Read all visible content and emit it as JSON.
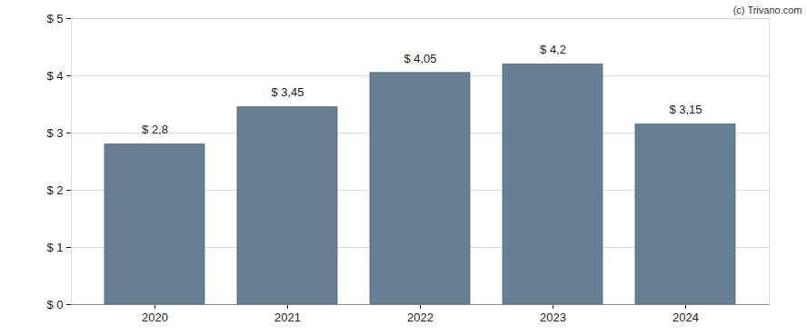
{
  "chart_data": {
    "type": "bar",
    "annotation": "(c) Trivano.com",
    "categories": [
      "2020",
      "2021",
      "2022",
      "2023",
      "2024"
    ],
    "values": [
      2.8,
      3.45,
      4.05,
      4.2,
      3.15
    ],
    "value_labels": [
      "$ 2,8",
      "$ 3,45",
      "$ 4,05",
      "$ 4,2",
      "$ 3,15"
    ],
    "data_labels": true,
    "color": "#667f93",
    "ylim": [
      0,
      5
    ],
    "yticks": [
      {
        "value": 0,
        "label": "$ 0"
      },
      {
        "value": 1,
        "label": "$ 1"
      },
      {
        "value": 2,
        "label": "$ 2"
      },
      {
        "value": 3,
        "label": "$ 3"
      },
      {
        "value": 4,
        "label": "$ 4"
      },
      {
        "value": 5,
        "label": "$ 5"
      }
    ],
    "grid": true
  }
}
